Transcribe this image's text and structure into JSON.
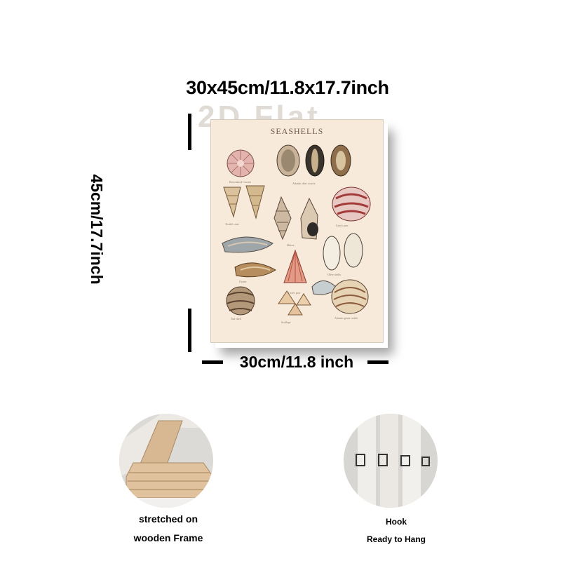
{
  "dimensions": {
    "top": "30x45cm/11.8x17.7inch",
    "left": "45cm/17.7inch",
    "bottom": "30cm/11.8 inch"
  },
  "watermark": "2D Flat",
  "poster": {
    "title": "SEASHELLS"
  },
  "features": [
    {
      "icon": "wooden-frame-corner-photo",
      "line1": "stretched on",
      "line2": "wooden Frame"
    },
    {
      "icon": "hook-photo",
      "line1": "Hook",
      "line2": "Ready to Hang"
    }
  ],
  "colors": {
    "poster_background": "#f8eadb",
    "text": "#000000"
  }
}
